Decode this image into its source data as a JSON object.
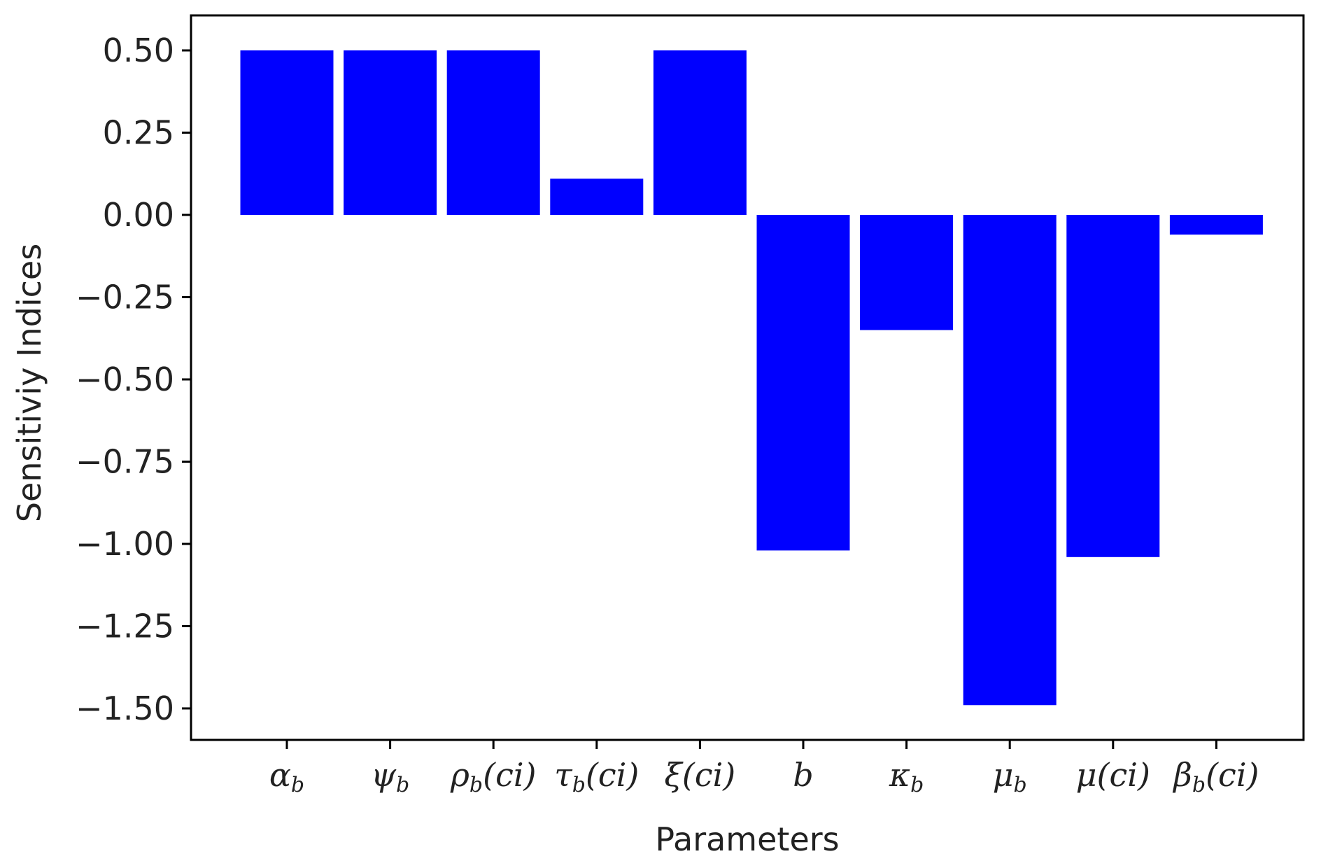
{
  "chart_data": {
    "type": "bar",
    "categories": [
      "αb",
      "ψb",
      "ρb(ci)",
      "τb(ci)",
      "ξ(ci)",
      "b",
      "κb",
      "μb",
      "μ(ci)",
      "βb(ci)"
    ],
    "category_parts": [
      {
        "base": "α",
        "sub": "b",
        "suffix": ""
      },
      {
        "base": "ψ",
        "sub": "b",
        "suffix": ""
      },
      {
        "base": "ρ",
        "sub": "b",
        "suffix": "(ci)"
      },
      {
        "base": "τ",
        "sub": "b",
        "suffix": "(ci)"
      },
      {
        "base": "ξ",
        "sub": "",
        "suffix": "(ci)"
      },
      {
        "base": "b",
        "sub": "",
        "suffix": ""
      },
      {
        "base": "κ",
        "sub": "b",
        "suffix": ""
      },
      {
        "base": "μ",
        "sub": "b",
        "suffix": ""
      },
      {
        "base": "μ",
        "sub": "",
        "suffix": "(ci)"
      },
      {
        "base": "β",
        "sub": "b",
        "suffix": "(ci)"
      }
    ],
    "values": [
      0.5,
      0.5,
      0.5,
      0.11,
      0.5,
      -1.02,
      -0.35,
      -1.49,
      -1.04,
      -0.06
    ],
    "xlabel": "Parameters",
    "ylabel": "Sensitiviy Indices",
    "ylim": [
      -1.59,
      0.6
    ],
    "yticks": [
      0.5,
      0.25,
      0.0,
      -0.25,
      -0.5,
      -0.75,
      -1.0,
      -1.25,
      -1.5
    ],
    "ytick_labels": [
      "0.50",
      "0.25",
      "0.00",
      "−0.25",
      "−0.50",
      "−0.75",
      "−1.00",
      "−1.25",
      "−1.50"
    ],
    "bar_color": "#0000ff",
    "grid": false
  }
}
